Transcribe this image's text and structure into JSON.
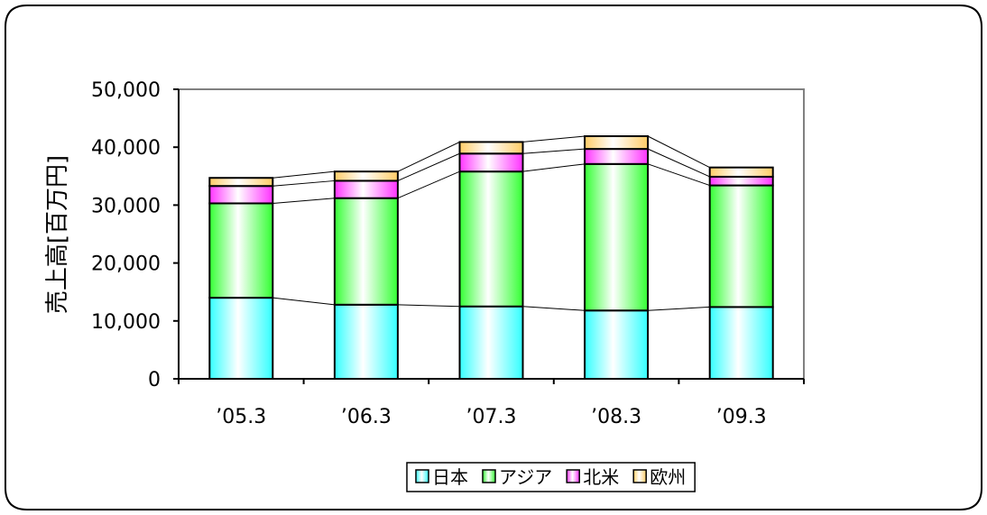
{
  "chart_data": {
    "type": "bar",
    "stacked": true,
    "series_lines": true,
    "title": "",
    "xlabel": "",
    "ylabel": "売上高[百万円]",
    "ylim": [
      0,
      50000
    ],
    "yticks": [
      0,
      10000,
      20000,
      30000,
      40000,
      50000
    ],
    "ytick_labels": [
      "0",
      "10,000",
      "20,000",
      "30,000",
      "40,000",
      "50,000"
    ],
    "categories": [
      "’05.3",
      "’06.3",
      "’07.3",
      "’08.3",
      "’09.3"
    ],
    "series": [
      {
        "name": "日本",
        "color": "#33ffff",
        "values": [
          14000,
          12800,
          12500,
          11800,
          12400
        ]
      },
      {
        "name": "アジア",
        "color": "#33ff33",
        "values": [
          16300,
          18400,
          23300,
          25300,
          21000
        ]
      },
      {
        "name": "北米",
        "color": "#ff33ff",
        "values": [
          3000,
          3000,
          3100,
          2600,
          1500
        ]
      },
      {
        "name": "欧州",
        "color": "#ffcc66",
        "values": [
          1400,
          1600,
          2000,
          2200,
          1600
        ]
      }
    ],
    "legend_position": "bottom",
    "grid": false
  }
}
